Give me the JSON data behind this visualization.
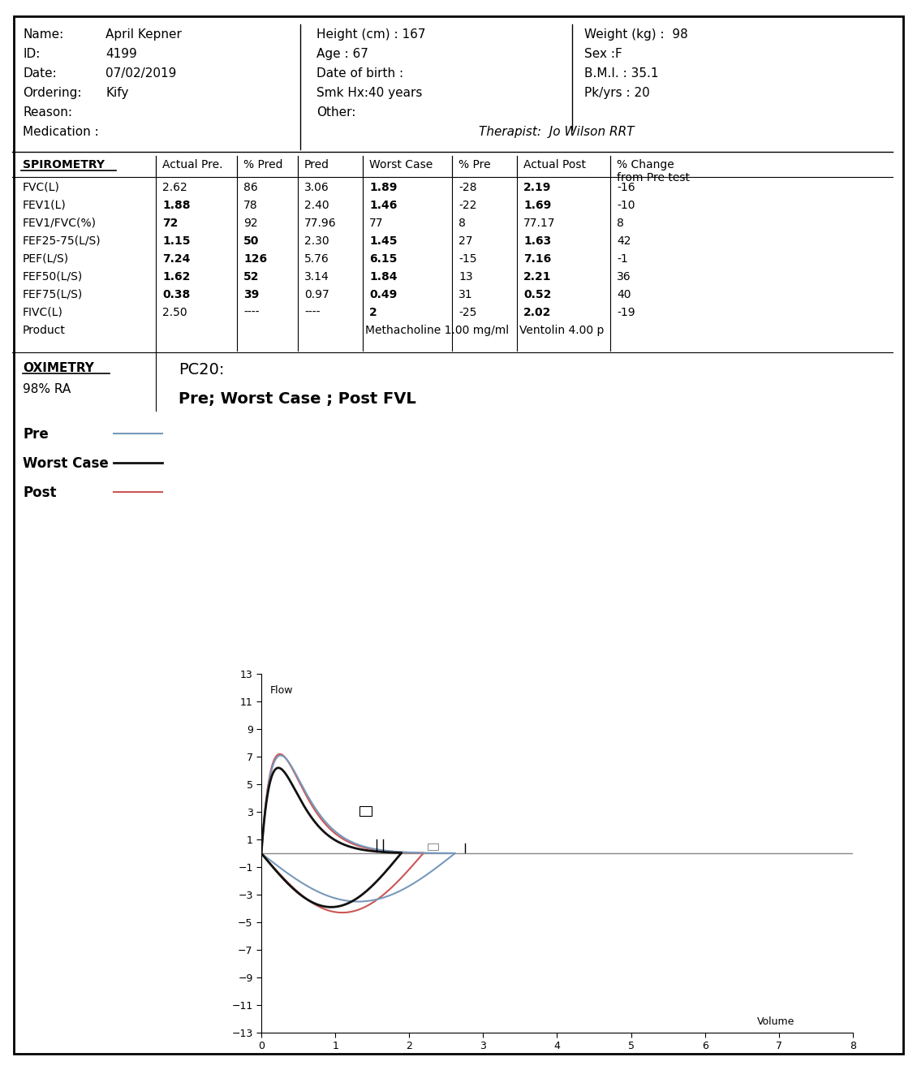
{
  "patient_left_labels": [
    "Name:",
    "ID:",
    "Date:",
    "Ordering:",
    "Reason:",
    "Medication :"
  ],
  "patient_left_values": [
    "April Kepner",
    "4199",
    "07/02/2019",
    "Kify",
    "",
    ""
  ],
  "patient_mid": [
    "Height (cm) : 167",
    "Age : 67",
    "Date of birth :",
    "Smk Hx:40 years",
    "Other:"
  ],
  "patient_right": [
    "Weight (kg) :  98",
    "Sex :F",
    "B.M.I. : 35.1",
    "Pk/yrs : 20"
  ],
  "therapist": "Therapist:  Jo Wilson RRT",
  "table_headers": [
    "SPIROMETRY",
    "Actual Pre.",
    "% Pred",
    "Pred",
    "Worst Case",
    "% Pre",
    "Actual Post",
    "% Change\nfrom Pre test"
  ],
  "table_rows": [
    [
      "FVC(L)",
      "2.62",
      "86",
      "3.06",
      "1.89",
      "-28",
      "2.19",
      "-16"
    ],
    [
      "FEV1(L)",
      "1.88",
      "78",
      "2.40",
      "1.46",
      "-22",
      "1.69",
      "-10"
    ],
    [
      "FEV1/FVC(%)",
      "72",
      "92",
      "77.96",
      "77",
      "8",
      "77.17",
      "8"
    ],
    [
      "FEF25-75(L/S)",
      "1.15",
      "50",
      "2.30",
      "1.45",
      "27",
      "1.63",
      "42"
    ],
    [
      "PEF(L/S)",
      "7.24",
      "126",
      "5.76",
      "6.15",
      "-15",
      "7.16",
      "-1"
    ],
    [
      "FEF50(L/S)",
      "1.62",
      "52",
      "3.14",
      "1.84",
      "13",
      "2.21",
      "36"
    ],
    [
      "FEF75(L/S)",
      "0.38",
      "39",
      "0.97",
      "0.49",
      "31",
      "0.52",
      "40"
    ],
    [
      "FIVC(L)",
      "2.50",
      "----",
      "----",
      "2",
      "-25",
      "2.02",
      "-19"
    ],
    [
      "Product",
      "",
      "",
      "",
      "Methacholine 1.00 mg/ml",
      "",
      "Ventolin 4.00 p",
      ""
    ]
  ],
  "bold_actual_pre": [
    1,
    2,
    3,
    4,
    5,
    6
  ],
  "bold_pct_pred": [
    3,
    4,
    5,
    6
  ],
  "bold_worst_case": [
    0,
    1,
    3,
    4,
    5,
    6,
    7
  ],
  "bold_actual_post": [
    0,
    1,
    3,
    4,
    5,
    6,
    7
  ],
  "oximetry_label": "OXIMETRY",
  "oximetry_value": "98% RA",
  "pc20_label": "PC20:",
  "fvl_title": "Pre; Worst Case ; Post FVL",
  "legend_items": [
    {
      "label": "Pre",
      "color": "#7799bb",
      "lw": 1.5
    },
    {
      "label": "Worst Case",
      "color": "#111111",
      "lw": 2.0
    },
    {
      "label": "Post",
      "color": "#cc5555",
      "lw": 1.5
    }
  ],
  "graph_xlim": [
    0,
    8
  ],
  "graph_ylim": [
    -13,
    13
  ],
  "graph_xticks": [
    0,
    1,
    2,
    3,
    4,
    5,
    6,
    7,
    8
  ],
  "graph_yticks": [
    -13,
    -11,
    -9,
    -7,
    -5,
    -3,
    -1,
    1,
    3,
    5,
    7,
    9,
    11,
    13
  ],
  "bg_color": "#ffffff"
}
